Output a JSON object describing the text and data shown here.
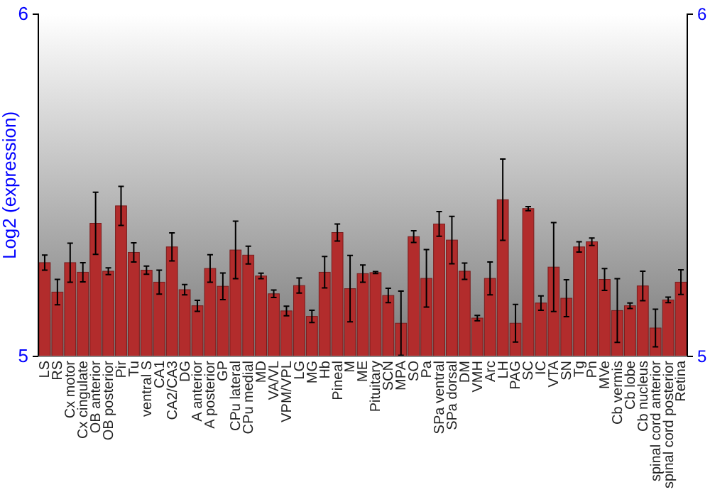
{
  "chart_data": {
    "type": "bar",
    "ylabel": "Log2 (expression)",
    "categories": [
      "LS",
      "RS",
      "Cx motor",
      "Cx cingulate",
      "OB anterior",
      "OB posterior",
      "Pir",
      "Tu",
      "ventral S",
      "CA1",
      "CA2/CA3",
      "DG",
      "A anterior",
      "A posterior",
      "GP",
      "CPu lateral",
      "CPu medial",
      "MD",
      "VA/VL",
      "VPM/VPL",
      "LG",
      "MG",
      "Hb",
      "Pineal",
      "M",
      "ME",
      "Pituitary",
      "SCN",
      "MPA",
      "SO",
      "Pa",
      "SPa ventral",
      "SPa dorsal",
      "DM",
      "VMH",
      "Arc",
      "LH",
      "PAG",
      "SC",
      "IC",
      "VTA",
      "SN",
      "Tg",
      "Pn",
      "MVe",
      "Cb vermis",
      "Cb lobe",
      "Cb nucleus",
      "spinal cord anterior",
      "spinal cord posterior",
      "Retina"
    ],
    "series": [
      {
        "color": "#b22c2c",
        "values": [
          5.274,
          5.188,
          5.274,
          5.246,
          5.389,
          5.249,
          5.44,
          5.304,
          5.252,
          5.217,
          5.32,
          5.195,
          5.148,
          5.257,
          5.205,
          5.311,
          5.296,
          5.235,
          5.183,
          5.133,
          5.207,
          5.117,
          5.246,
          5.362,
          5.198,
          5.242,
          5.245,
          5.178,
          5.097,
          5.35,
          5.228,
          5.387,
          5.34,
          5.249,
          5.112,
          5.228,
          5.458,
          5.097,
          5.432,
          5.156,
          5.261,
          5.17,
          5.32,
          5.335,
          5.225,
          5.134,
          5.148,
          5.206,
          5.083,
          5.165,
          5.217
        ],
        "errors": [
          0.022,
          0.037,
          0.057,
          0.028,
          0.091,
          0.01,
          0.057,
          0.028,
          0.012,
          0.035,
          0.041,
          0.015,
          0.016,
          0.04,
          0.039,
          0.084,
          0.026,
          0.008,
          0.011,
          0.014,
          0.022,
          0.018,
          0.046,
          0.025,
          0.097,
          0.025,
          0.003,
          0.021,
          0.094,
          0.017,
          0.084,
          0.036,
          0.069,
          0.024,
          0.008,
          0.048,
          0.119,
          0.055,
          0.006,
          0.021,
          0.13,
          0.054,
          0.015,
          0.011,
          0.032,
          0.093,
          0.008,
          0.043,
          0.055,
          0.008,
          0.036
        ]
      }
    ],
    "ylim": [
      5,
      6
    ],
    "yticks": [
      5,
      6
    ],
    "y2lim": [
      5,
      6
    ],
    "y2ticks": [
      5,
      6
    ],
    "grid": false
  }
}
